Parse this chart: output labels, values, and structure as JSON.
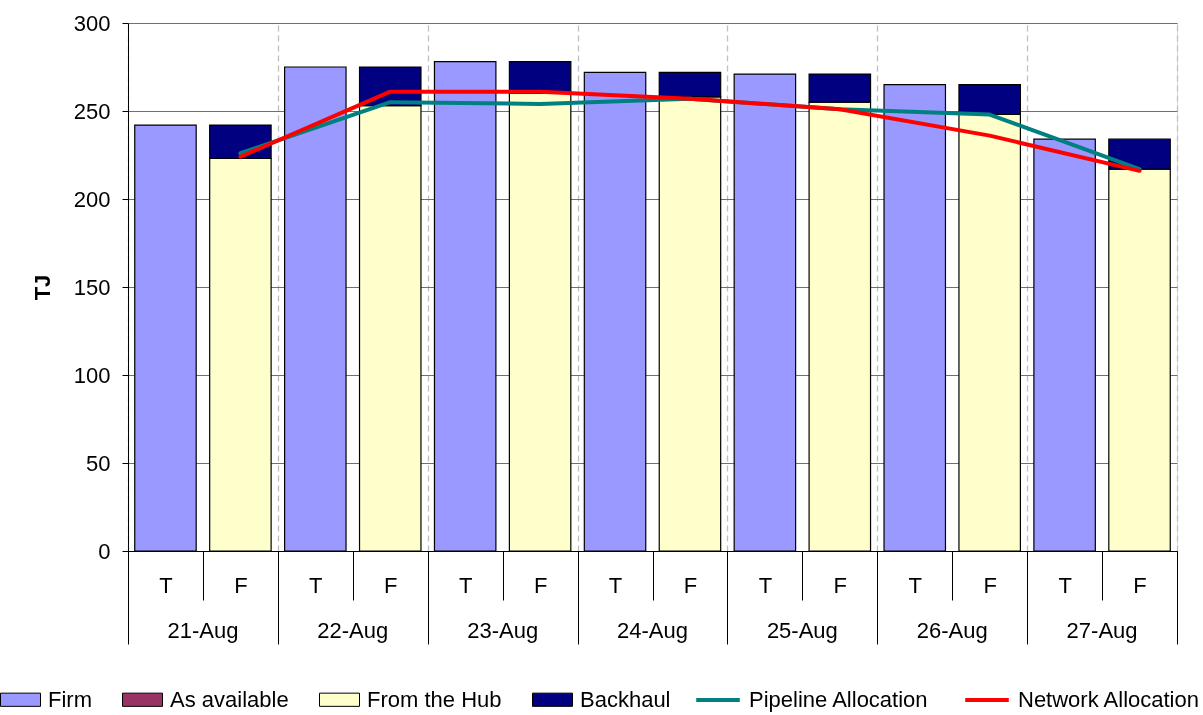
{
  "chart_data": {
    "type": "bar",
    "ylabel": "TJ",
    "categories": [
      "T",
      "F",
      "T",
      "F",
      "T",
      "F",
      "T",
      "F",
      "T",
      "F",
      "T",
      "F",
      "T",
      "F"
    ],
    "annotations": [
      "21-Aug",
      "22-Aug",
      "23-Aug",
      "24-Aug",
      "25-Aug",
      "26-Aug",
      "27-Aug"
    ],
    "stacked": true,
    "ylim": [
      0,
      300
    ],
    "yticks": [
      0,
      50,
      100,
      150,
      200,
      250,
      300
    ],
    "grid": true,
    "legend": "bottom",
    "series": [
      {
        "name": "Firm",
        "color": "#9999ff",
        "values": [
          242,
          null,
          275,
          null,
          278,
          null,
          272,
          null,
          271,
          null,
          265,
          null,
          234,
          null
        ]
      },
      {
        "name": "As available",
        "color": "#993366",
        "values": [
          null,
          null,
          null,
          null,
          null,
          null,
          null,
          null,
          null,
          null,
          null,
          null,
          null,
          null
        ]
      },
      {
        "name": "From the Hub",
        "color": "#ffffcc",
        "values": [
          null,
          223,
          null,
          253,
          null,
          260,
          null,
          258,
          null,
          255,
          null,
          248,
          null,
          217
        ]
      },
      {
        "name": "Backhaul",
        "color": "#000080",
        "values": [
          null,
          19,
          null,
          22,
          null,
          18,
          null,
          14,
          null,
          16,
          null,
          17,
          null,
          17
        ]
      },
      {
        "name": "Pipeline Allocation",
        "type": "line",
        "color": "#008080",
        "values": [
          null,
          226,
          null,
          255,
          null,
          254,
          null,
          257,
          null,
          251,
          null,
          248,
          null,
          217
        ]
      },
      {
        "name": "Network Allocation",
        "type": "line",
        "color": "#ff0000",
        "values": [
          null,
          224,
          null,
          261,
          null,
          261,
          null,
          257,
          null,
          251,
          null,
          236,
          null,
          216
        ]
      }
    ]
  }
}
